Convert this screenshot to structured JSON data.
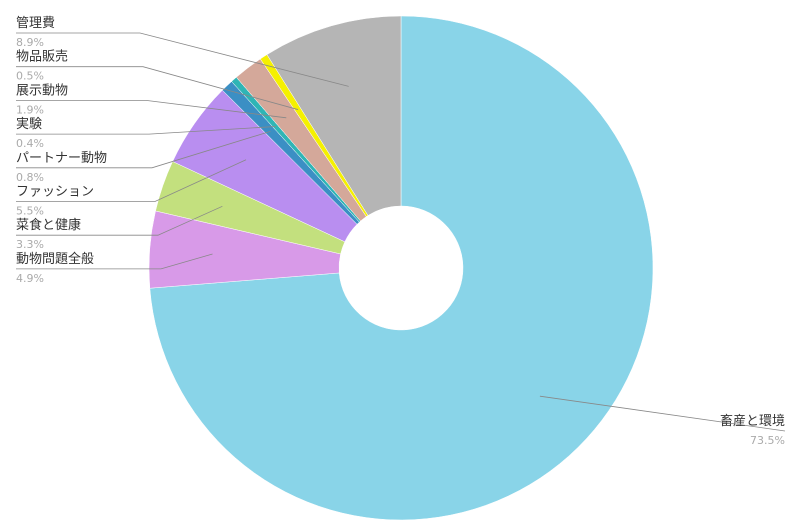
{
  "chart_data": {
    "type": "donut",
    "categories": [
      "畜産と環境",
      "動物問題全般",
      "菜食と健康",
      "ファッション",
      "パートナー動物",
      "実験",
      "展示動物",
      "物品販売",
      "管理費"
    ],
    "values": [
      73.5,
      4.9,
      3.3,
      5.5,
      0.8,
      0.4,
      1.9,
      0.5,
      8.9
    ],
    "value_labels": [
      "73.5%",
      "4.9%",
      "3.3%",
      "5.5%",
      "0.8%",
      "0.4%",
      "1.9%",
      "0.5%",
      "8.9%"
    ],
    "colors": [
      "#89d4e8",
      "#d89ae8",
      "#c3e07e",
      "#b98ef0",
      "#3b8fc4",
      "#2fb5b5",
      "#d4a89a",
      "#f5f000",
      "#b5b5b5"
    ]
  }
}
